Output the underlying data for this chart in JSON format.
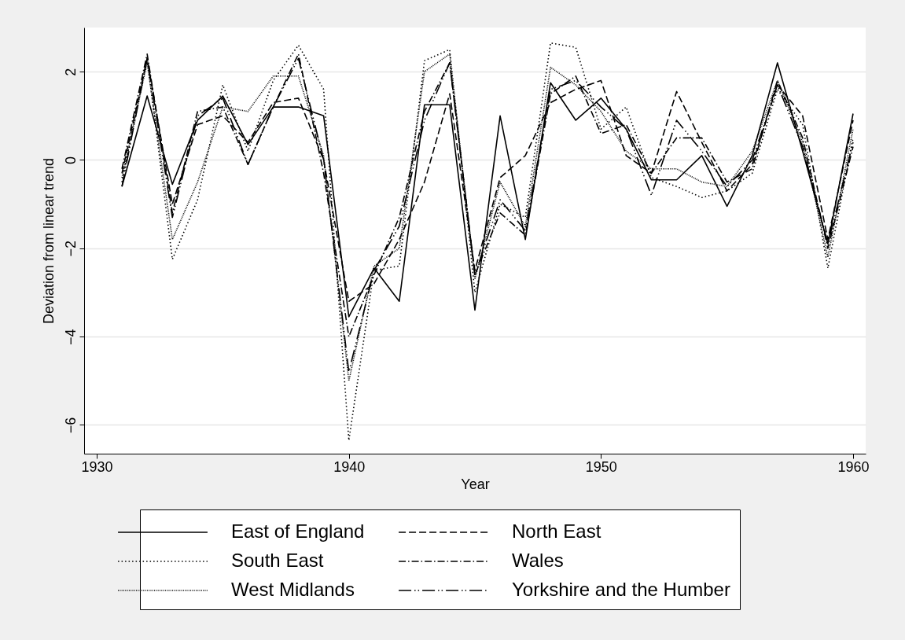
{
  "chart_data": {
    "type": "line",
    "xlabel": "Year",
    "ylabel": "Deviation from linear trend",
    "x": [
      1931,
      1932,
      1933,
      1934,
      1935,
      1936,
      1937,
      1938,
      1939,
      1940,
      1941,
      1942,
      1943,
      1944,
      1945,
      1946,
      1947,
      1948,
      1949,
      1950,
      1951,
      1952,
      1953,
      1954,
      1955,
      1956,
      1957,
      1958,
      1959,
      1960
    ],
    "xlim": [
      1929.5,
      1960.5
    ],
    "xticks": [
      1930,
      1940,
      1950,
      1960
    ],
    "ylim": [
      -6.65,
      3
    ],
    "yticks": [
      -6,
      -4,
      -2,
      0,
      2
    ],
    "grid": "y",
    "legend": "bottom",
    "series": [
      {
        "name": "East of England",
        "color": "#000000",
        "line_style": "solid",
        "values": [
          -0.6,
          1.45,
          -0.55,
          0.9,
          1.45,
          0.35,
          1.2,
          1.2,
          1.0,
          -3.55,
          -2.45,
          -3.2,
          1.25,
          1.25,
          -3.4,
          1.0,
          -1.8,
          1.75,
          0.9,
          1.4,
          0.7,
          -0.45,
          -0.45,
          0.1,
          -1.05,
          0.1,
          2.2,
          0.2,
          -1.9,
          1.05
        ]
      },
      {
        "name": "South East",
        "color": "#000000",
        "line_style": "dotted",
        "values": [
          -0.5,
          2.3,
          -2.25,
          -0.9,
          1.7,
          0.2,
          1.8,
          2.6,
          1.6,
          -6.35,
          -2.5,
          -2.4,
          2.25,
          2.5,
          -3.0,
          -1.0,
          -1.3,
          2.65,
          2.55,
          0.7,
          1.2,
          -0.4,
          -0.6,
          -0.85,
          -0.7,
          -0.3,
          1.6,
          0.8,
          -2.45,
          0.5
        ]
      },
      {
        "name": "West Midlands",
        "color": "#000000",
        "line_style": "finedotted",
        "values": [
          -0.4,
          2.2,
          -1.8,
          -0.5,
          1.2,
          1.1,
          1.9,
          1.9,
          0.1,
          -5.0,
          -2.4,
          -2.0,
          2.0,
          2.4,
          -2.7,
          -0.5,
          -1.5,
          2.1,
          1.7,
          1.1,
          0.2,
          -0.2,
          -0.2,
          -0.5,
          -0.6,
          0.2,
          1.8,
          0.4,
          -2.2,
          0.7
        ]
      },
      {
        "name": "North East",
        "color": "#000000",
        "line_style": "dashed",
        "values": [
          -0.3,
          2.3,
          -1.0,
          0.8,
          1.0,
          0.4,
          1.3,
          1.4,
          0.0,
          -3.2,
          -2.8,
          -1.8,
          -0.5,
          1.5,
          -2.5,
          -0.4,
          0.1,
          1.3,
          1.6,
          1.8,
          0.1,
          -0.3,
          1.55,
          0.4,
          -0.7,
          -0.1,
          1.7,
          1.0,
          -1.8,
          0.9
        ]
      },
      {
        "name": "Wales",
        "color": "#000000",
        "line_style": "dashdot",
        "values": [
          -0.2,
          2.4,
          -1.2,
          1.1,
          1.2,
          -0.1,
          1.2,
          2.4,
          -0.3,
          -4.0,
          -2.6,
          -1.3,
          1.1,
          2.2,
          -2.6,
          -1.2,
          -1.7,
          1.5,
          1.9,
          0.6,
          0.8,
          -0.3,
          0.5,
          0.5,
          -0.5,
          -0.2,
          1.8,
          0.5,
          -2.0,
          0.3
        ]
      },
      {
        "name": "Yorkshire and the Humber",
        "color": "#000000",
        "line_style": "longdashdot",
        "values": [
          -0.6,
          2.3,
          -1.3,
          1.0,
          1.4,
          -0.1,
          1.2,
          2.3,
          0.0,
          -4.8,
          -2.5,
          -1.5,
          0.9,
          2.2,
          -2.6,
          -0.9,
          -1.6,
          1.6,
          1.8,
          1.2,
          0.7,
          -0.8,
          0.9,
          0.2,
          -0.6,
          0.0,
          1.7,
          0.3,
          -1.9,
          0.4
        ]
      }
    ]
  }
}
